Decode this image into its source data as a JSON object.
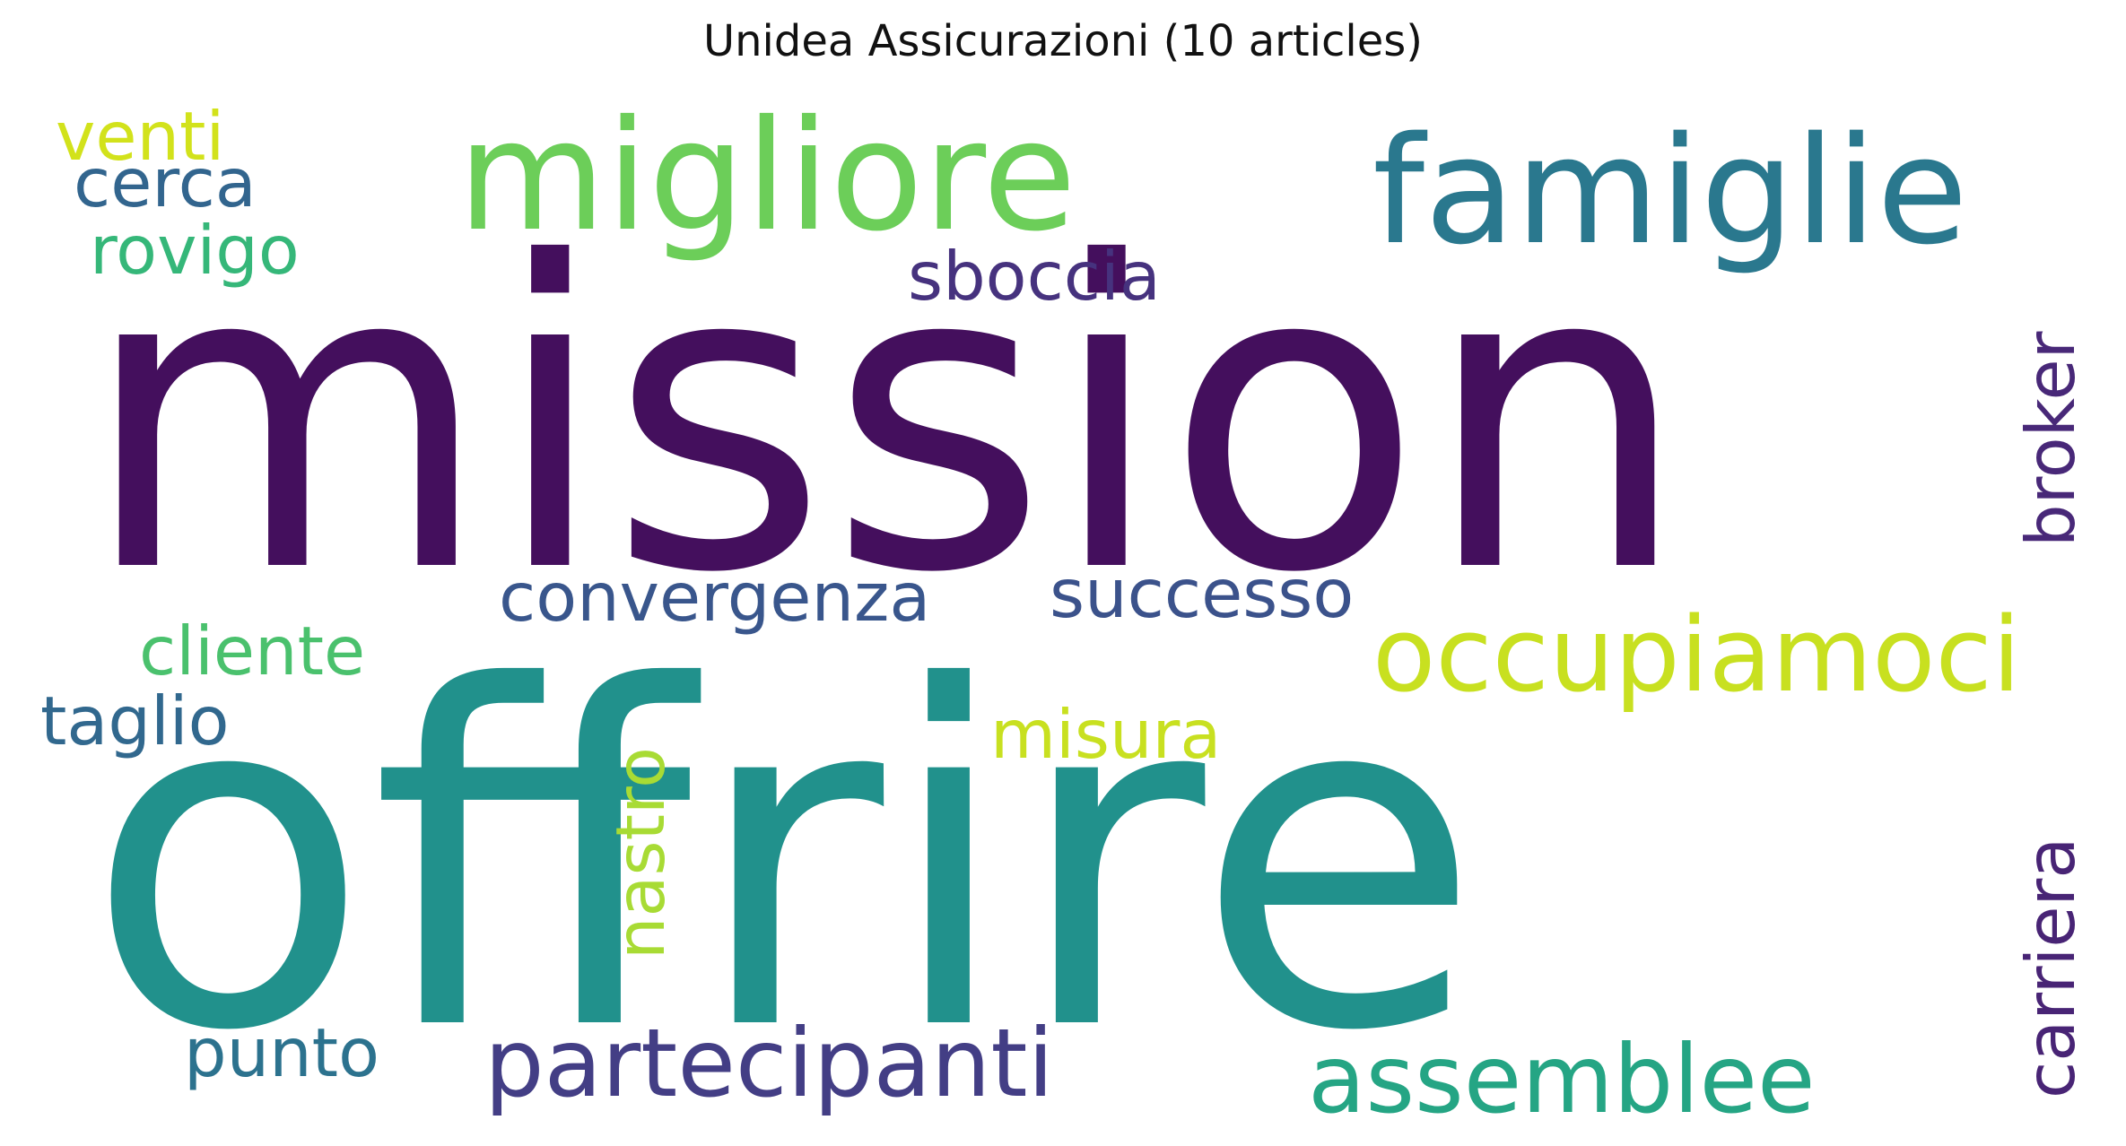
{
  "title": "Unidea Assicurazioni (10 articles)",
  "words": [
    {
      "text": "mission",
      "color": "#440f5d"
    },
    {
      "text": "offrire",
      "color": "#21918c"
    },
    {
      "text": "migliore",
      "color": "#6cce59"
    },
    {
      "text": "famiglie",
      "color": "#2a788e"
    },
    {
      "text": "occupiamoci",
      "color": "#c8e020"
    },
    {
      "text": "partecipanti",
      "color": "#433e85"
    },
    {
      "text": "assemblee",
      "color": "#25a584"
    },
    {
      "text": "convergenza",
      "color": "#39568c"
    },
    {
      "text": "successo",
      "color": "#3b528b"
    },
    {
      "text": "sboccia",
      "color": "#46327e"
    },
    {
      "text": "cliente",
      "color": "#4ac16d"
    },
    {
      "text": "taglio",
      "color": "#31688e"
    },
    {
      "text": "misura",
      "color": "#c8e020"
    },
    {
      "text": "punto",
      "color": "#2c728e"
    },
    {
      "text": "venti",
      "color": "#d2e21b"
    },
    {
      "text": "cerca",
      "color": "#32658e"
    },
    {
      "text": "rovigo",
      "color": "#35b779"
    },
    {
      "text": "broker",
      "color": "#482878"
    },
    {
      "text": "carriera",
      "color": "#482475"
    },
    {
      "text": "nastro",
      "color": "#a8db34"
    }
  ]
}
